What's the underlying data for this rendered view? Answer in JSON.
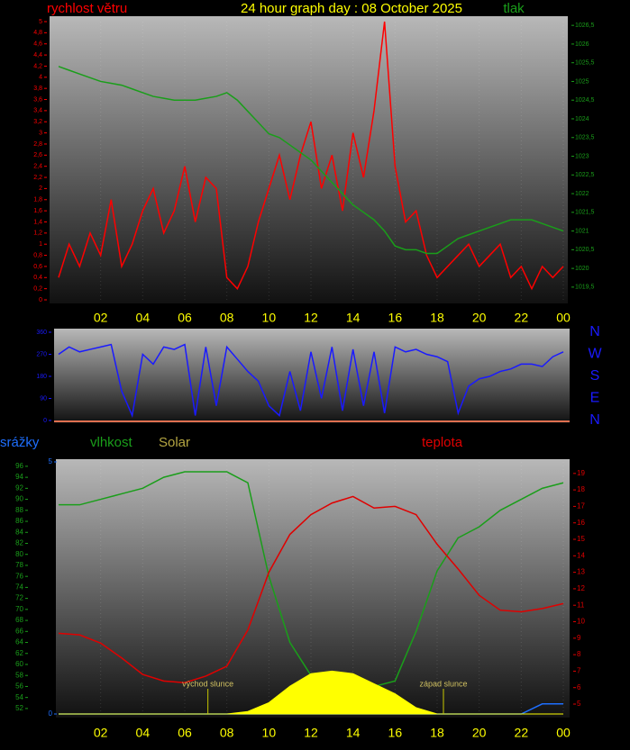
{
  "chart_data": [
    {
      "type": "line",
      "title": "24 hour graph day : 08 October 2025",
      "x": [
        0,
        0.5,
        1,
        1.5,
        2,
        2.5,
        3,
        3.5,
        4,
        4.5,
        5,
        5.5,
        6,
        6.5,
        7,
        7.5,
        8,
        8.5,
        9,
        9.5,
        10,
        10.5,
        11,
        11.5,
        12,
        12.5,
        13,
        13.5,
        14,
        14.5,
        15,
        15.5,
        16,
        16.5,
        17,
        17.5,
        18,
        18.5,
        19,
        19.5,
        20,
        20.5,
        21,
        21.5,
        22,
        22.5,
        23,
        23.5,
        24
      ],
      "xlim": [
        0,
        24
      ],
      "xticks": [
        {
          "value": 2,
          "label": "02"
        },
        {
          "value": 4,
          "label": "04"
        },
        {
          "value": 6,
          "label": "06"
        },
        {
          "value": 8,
          "label": "08"
        },
        10,
        12,
        14,
        16,
        18,
        20,
        22,
        {
          "value": 24,
          "label": "00"
        }
      ],
      "ylim": [
        0,
        5
      ],
      "yticks": [
        0,
        {
          "value": 0.2,
          "label": "0,2"
        },
        {
          "value": 0.4,
          "label": "0,4"
        },
        {
          "value": 0.6,
          "label": "0,6"
        },
        {
          "value": 0.8,
          "label": "0,8"
        },
        1,
        {
          "value": 1.2,
          "label": "1,2"
        },
        {
          "value": 1.4,
          "label": "1,4"
        },
        {
          "value": 1.6,
          "label": "1,6"
        },
        {
          "value": 1.8,
          "label": "1,8"
        },
        2,
        {
          "value": 2.2,
          "label": "2,2"
        },
        {
          "value": 2.4,
          "label": "2,4"
        },
        {
          "value": 2.6,
          "label": "2,6"
        },
        {
          "value": 2.8,
          "label": "2,8"
        },
        3,
        {
          "value": 3.2,
          "label": "3,2"
        },
        {
          "value": 3.4,
          "label": "3,4"
        },
        {
          "value": 3.6,
          "label": "3,6"
        },
        {
          "value": 3.8,
          "label": "3,8"
        },
        4,
        {
          "value": 4.2,
          "label": "4,2"
        },
        {
          "value": 4.4,
          "label": "4,4"
        },
        {
          "value": 4.6,
          "label": "4,6"
        },
        {
          "value": 4.8,
          "label": "4,8"
        },
        5
      ],
      "y2lim": [
        1019.16,
        1026.6
      ],
      "y2ticks": [
        {
          "value": 1019.5,
          "label": "1019,5"
        },
        1020,
        {
          "value": 1020.5,
          "label": "1020,5"
        },
        1021,
        {
          "value": 1021.5,
          "label": "1021,5"
        },
        1022,
        {
          "value": 1022.5,
          "label": "1022,5"
        },
        1023,
        {
          "value": 1023.5,
          "label": "1023,5"
        },
        1024,
        {
          "value": 1024.5,
          "label": "1024,5"
        },
        1025,
        {
          "value": 1025.5,
          "label": "1025,5"
        },
        1026,
        {
          "value": 1026.5,
          "label": "1026,5"
        }
      ],
      "grid": true,
      "series": [
        {
          "name": "rychlost větru",
          "color": "#ff0000",
          "values": [
            0.4,
            1.0,
            0.6,
            1.2,
            0.8,
            1.8,
            0.6,
            1.0,
            1.6,
            2.0,
            1.2,
            1.6,
            2.4,
            1.4,
            2.2,
            2.0,
            0.4,
            0.2,
            0.6,
            1.4,
            2.0,
            2.6,
            1.8,
            2.6,
            3.2,
            2.0,
            2.6,
            1.6,
            3.0,
            2.2,
            3.4,
            5.0,
            2.4,
            1.4,
            1.6,
            0.8,
            0.4,
            0.6,
            0.8,
            1.0,
            0.6,
            0.8,
            1.0,
            0.4,
            0.6,
            0.2,
            0.6,
            0.4,
            0.6
          ]
        },
        {
          "name": "tlak",
          "color": "#1a9e1a",
          "axis": "y2",
          "values": [
            1025.4,
            1025.3,
            1025.2,
            1025.1,
            1025.0,
            1024.95,
            1024.9,
            1024.8,
            1024.7,
            1024.6,
            1024.55,
            1024.5,
            1024.5,
            1024.5,
            1024.55,
            1024.6,
            1024.7,
            1024.5,
            1024.2,
            1023.9,
            1023.6,
            1023.5,
            1023.3,
            1023.1,
            1022.9,
            1022.6,
            1022.3,
            1022.0,
            1021.7,
            1021.5,
            1021.3,
            1021.0,
            1020.6,
            1020.5,
            1020.5,
            1020.4,
            1020.4,
            1020.6,
            1020.8,
            1020.9,
            1021.0,
            1021.1,
            1021.2,
            1021.3,
            1021.3,
            1021.3,
            1021.2,
            1021.1,
            1021.0
          ]
        }
      ]
    },
    {
      "type": "line",
      "x": [
        0,
        0.5,
        1,
        1.5,
        2,
        2.5,
        3,
        3.5,
        4,
        4.5,
        5,
        5.5,
        6,
        6.5,
        7,
        7.5,
        8,
        8.5,
        9,
        9.5,
        10,
        10.5,
        11,
        11.5,
        12,
        12.5,
        13,
        13.5,
        14,
        14.5,
        15,
        15.5,
        16,
        16.5,
        17,
        17.5,
        18,
        18.5,
        19,
        19.5,
        20,
        20.5,
        21,
        21.5,
        22,
        22.5,
        23,
        23.5,
        24
      ],
      "xlim": [
        0,
        24
      ],
      "ylim": [
        0,
        360
      ],
      "yticks": [
        0,
        90,
        180,
        270,
        360
      ],
      "y2lim": [
        0,
        360
      ],
      "y2ticks": [
        {
          "value": 360,
          "label": "N"
        },
        {
          "value": 270,
          "label": "W"
        },
        {
          "value": 180,
          "label": "S"
        },
        {
          "value": 90,
          "label": "E"
        },
        {
          "value": 0,
          "label": "N"
        }
      ],
      "series": [
        {
          "color": "#1a1aff",
          "values": [
            270,
            300,
            280,
            290,
            300,
            310,
            120,
            20,
            270,
            230,
            300,
            290,
            310,
            20,
            300,
            60,
            300,
            250,
            200,
            160,
            60,
            20,
            200,
            40,
            280,
            90,
            300,
            40,
            290,
            60,
            280,
            30,
            300,
            280,
            290,
            270,
            260,
            240,
            30,
            140,
            170,
            180,
            200,
            210,
            230,
            230,
            220,
            260,
            280
          ]
        }
      ]
    },
    {
      "type": "line",
      "x": [
        0,
        1,
        2,
        3,
        4,
        5,
        6,
        7,
        8,
        9,
        10,
        11,
        12,
        13,
        14,
        15,
        16,
        17,
        18,
        19,
        20,
        21,
        22,
        23,
        24
      ],
      "xlim": [
        0,
        24
      ],
      "xticks": [
        {
          "value": 2,
          "label": "02"
        },
        {
          "value": 4,
          "label": "04"
        },
        {
          "value": 6,
          "label": "06"
        },
        {
          "value": 8,
          "label": "08"
        },
        10,
        12,
        14,
        16,
        18,
        20,
        22,
        {
          "value": 24,
          "label": "00"
        }
      ],
      "ylim": [
        51,
        96.8
      ],
      "yticks": [
        52,
        54,
        56,
        58,
        60,
        62,
        64,
        66,
        68,
        70,
        72,
        74,
        76,
        78,
        80,
        82,
        84,
        86,
        88,
        90,
        92,
        94,
        96
      ],
      "y2lim": [
        4.4,
        19.7
      ],
      "y2ticks": [
        5,
        6,
        7,
        8,
        9,
        10,
        11,
        12,
        13,
        14,
        15,
        16,
        17,
        18,
        19
      ],
      "y3lim": [
        0,
        5
      ],
      "y3ticks": [
        0,
        5
      ],
      "y4lim": [
        0,
        1000
      ],
      "grid": true,
      "series": [
        {
          "name": "srážky",
          "color": "#1e6fff",
          "axis": "y3",
          "values": [
            0,
            0,
            0,
            0,
            0,
            0,
            0,
            0,
            0,
            0,
            0,
            0,
            0,
            0,
            0,
            0,
            0,
            0,
            0,
            0,
            0,
            0,
            0,
            0.2,
            0.2
          ]
        },
        {
          "name": "vlhkost",
          "color": "#1a9e1a",
          "values": [
            89,
            89,
            90,
            91,
            92,
            94,
            95,
            95,
            95,
            93,
            76,
            64,
            58,
            56,
            57,
            56,
            57,
            66,
            77,
            83,
            85,
            88,
            90,
            92,
            93
          ]
        },
        {
          "name": "Solar",
          "color": "#b5a642",
          "fill": "#ffff00",
          "axis": "y4",
          "area": true,
          "values": [
            0,
            0,
            0,
            0,
            0,
            0,
            0,
            0,
            0,
            10,
            45,
            110,
            160,
            170,
            160,
            120,
            80,
            25,
            0,
            0,
            0,
            0,
            0,
            0,
            0
          ]
        },
        {
          "name": "teplota",
          "color": "#e00000",
          "axis": "y2",
          "values": [
            9.3,
            9.2,
            8.7,
            7.8,
            6.8,
            6.4,
            6.3,
            6.7,
            7.3,
            9.5,
            13.0,
            15.3,
            16.5,
            17.2,
            17.6,
            16.9,
            17.0,
            16.5,
            14.7,
            13.2,
            11.6,
            10.7,
            10.6,
            10.8,
            11.1
          ]
        }
      ],
      "annotations": [
        {
          "text": "východ slunce",
          "x": 7.1
        },
        {
          "text": "západ slunce",
          "x": 18.3
        }
      ]
    }
  ]
}
